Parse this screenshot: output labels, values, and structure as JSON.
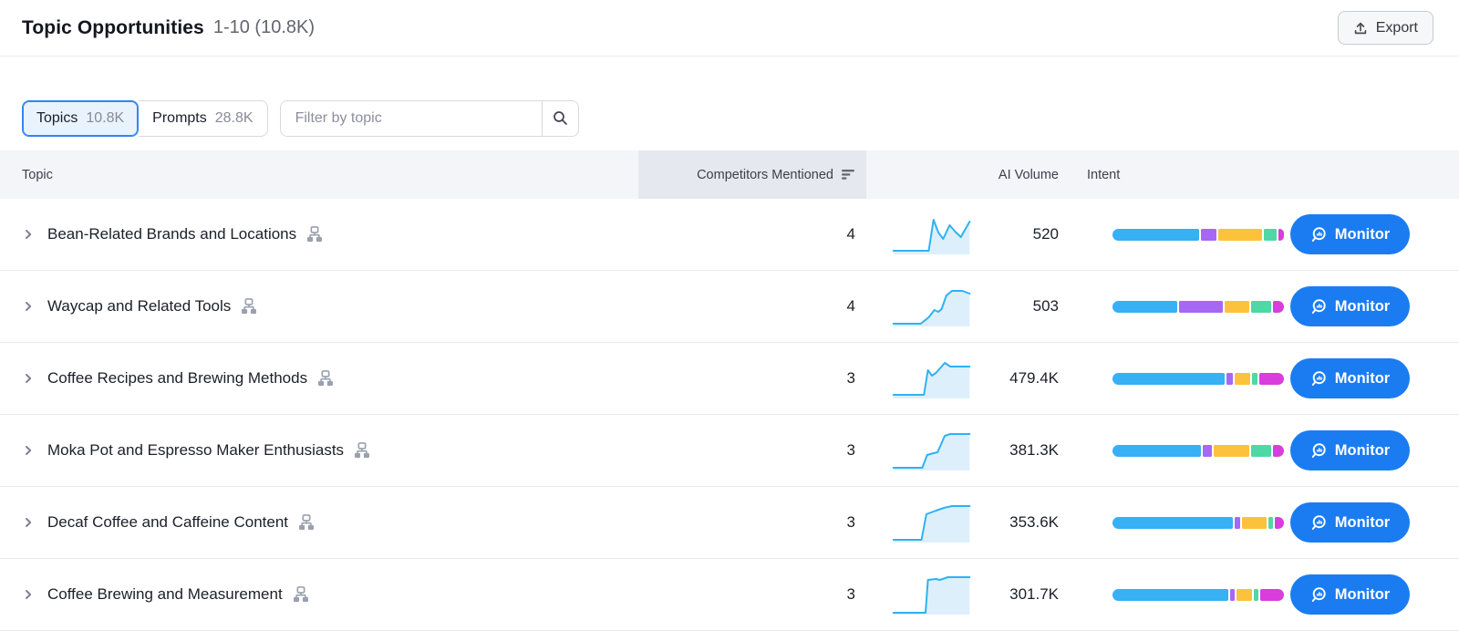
{
  "header": {
    "title": "Topic Opportunities",
    "range": "1-10 (10.8K)",
    "export_label": "Export"
  },
  "controls": {
    "tabs": [
      {
        "label": "Topics",
        "count": "10.8K",
        "selected": true
      },
      {
        "label": "Prompts",
        "count": "28.8K",
        "selected": false
      }
    ],
    "filter_placeholder": "Filter by topic"
  },
  "table": {
    "columns": {
      "topic": "Topic",
      "competitors": "Competitors Mentioned",
      "ai_volume": "AI Volume",
      "intent": "Intent"
    },
    "sort": {
      "column": "Competitors Mentioned",
      "direction": "desc"
    },
    "monitor_label": "Monitor",
    "rows": [
      {
        "topic": "Bean-Related Brands and Locations",
        "competitors": "4",
        "ai_volume": "520",
        "spark": [
          [
            2,
            40
          ],
          [
            46,
            40
          ],
          [
            52,
            6
          ],
          [
            58,
            20
          ],
          [
            64,
            27
          ],
          [
            72,
            12
          ],
          [
            79,
            19
          ],
          [
            86,
            25
          ],
          [
            97,
            8
          ]
        ],
        "intent": [
          95,
          17,
          48,
          14,
          6
        ]
      },
      {
        "topic": "Waycap and Related Tools",
        "competitors": "4",
        "ai_volume": "503",
        "spark": [
          [
            2,
            41
          ],
          [
            36,
            41
          ],
          [
            46,
            34
          ],
          [
            53,
            26
          ],
          [
            58,
            28
          ],
          [
            62,
            25
          ],
          [
            68,
            10
          ],
          [
            75,
            5
          ],
          [
            88,
            5
          ],
          [
            97,
            8
          ]
        ],
        "intent": [
          71,
          48,
          27,
          22,
          12
        ]
      },
      {
        "topic": "Coffee Recipes and Brewing Methods",
        "competitors": "3",
        "ai_volume": "479.4K",
        "spark": [
          [
            2,
            40
          ],
          [
            40,
            40
          ],
          [
            45,
            13
          ],
          [
            50,
            19
          ],
          [
            55,
            16
          ],
          [
            66,
            5
          ],
          [
            73,
            9
          ],
          [
            97,
            9
          ]
        ],
        "intent": [
          123,
          7,
          17,
          6,
          27
        ]
      },
      {
        "topic": "Moka Pot and Espresso Maker Enthusiasts",
        "competitors": "3",
        "ai_volume": "381.3K",
        "spark": [
          [
            2,
            41
          ],
          [
            38,
            41
          ],
          [
            44,
            27
          ],
          [
            52,
            25
          ],
          [
            57,
            24
          ],
          [
            66,
            6
          ],
          [
            73,
            4
          ],
          [
            97,
            4
          ]
        ],
        "intent": [
          97,
          10,
          39,
          22,
          12
        ]
      },
      {
        "topic": "Decaf Coffee and Caffeine Content",
        "competitors": "3",
        "ai_volume": "353.6K",
        "spark": [
          [
            2,
            41
          ],
          [
            37,
            41
          ],
          [
            43,
            13
          ],
          [
            55,
            9
          ],
          [
            65,
            6
          ],
          [
            75,
            4
          ],
          [
            97,
            4
          ]
        ],
        "intent": [
          132,
          6,
          27,
          5,
          10
        ]
      },
      {
        "topic": "Coffee Brewing and Measurement",
        "competitors": "3",
        "ai_volume": "301.7K",
        "spark": [
          [
            2,
            42
          ],
          [
            42,
            42
          ],
          [
            45,
            6
          ],
          [
            55,
            5
          ],
          [
            60,
            6
          ],
          [
            70,
            3
          ],
          [
            97,
            3
          ]
        ],
        "intent": [
          127,
          5,
          17,
          5,
          26
        ]
      }
    ]
  },
  "icons": {
    "export": "upload-icon",
    "filter": "search-icon",
    "sort": "sort-desc-icon",
    "row_expand": "chevron-right-icon",
    "topic_map": "sitemap-icon",
    "monitor": "monitor-magnifier-icon"
  },
  "colors": {
    "intent_palette": [
      "#37b0f4",
      "#a767f5",
      "#fdc23c",
      "#4fd7a5",
      "#d93ddb"
    ],
    "spark_line": "#2fb2f2",
    "spark_fill": "#ddeffb",
    "monitor_blue": "#1b7cf2",
    "selected_tab_bg": "#e9f3fe",
    "selected_tab_border": "#2e86ee",
    "header_bg": "#f4f5f9",
    "sorted_col_bg": "#e6e8ef"
  }
}
